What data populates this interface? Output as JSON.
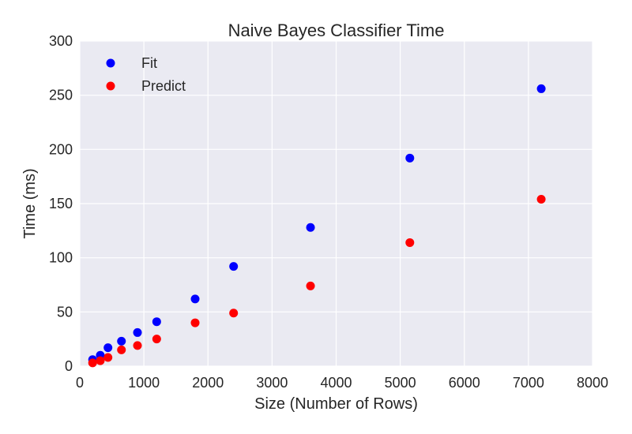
{
  "chart_data": {
    "type": "scatter",
    "title": "Naive Bayes Classifier Time",
    "xlabel": "Size (Number of Rows)",
    "ylabel": "Time (ms)",
    "xlim": [
      0,
      8000
    ],
    "ylim": [
      0,
      300
    ],
    "x_ticks": [
      "0",
      "1000",
      "2000",
      "3000",
      "4000",
      "5000",
      "6000",
      "7000",
      "8000"
    ],
    "y_ticks": [
      "0",
      "50",
      "100",
      "150",
      "200",
      "250",
      "300"
    ],
    "grid": true,
    "legend_position": "top-left",
    "background_color": "#eaeaf2",
    "series": [
      {
        "name": "Fit",
        "color": "#0000ff",
        "x": [
          200,
          320,
          440,
          650,
          900,
          1200,
          1800,
          2400,
          3600,
          5150,
          7200
        ],
        "y": [
          6,
          10,
          17,
          23,
          31,
          41,
          62,
          92,
          128,
          192,
          256
        ]
      },
      {
        "name": "Predict",
        "color": "#ff0000",
        "x": [
          200,
          320,
          440,
          650,
          900,
          1200,
          1800,
          2400,
          3600,
          5150,
          7200
        ],
        "y": [
          3,
          5,
          8,
          15,
          19,
          25,
          40,
          49,
          74,
          114,
          154
        ]
      }
    ]
  }
}
